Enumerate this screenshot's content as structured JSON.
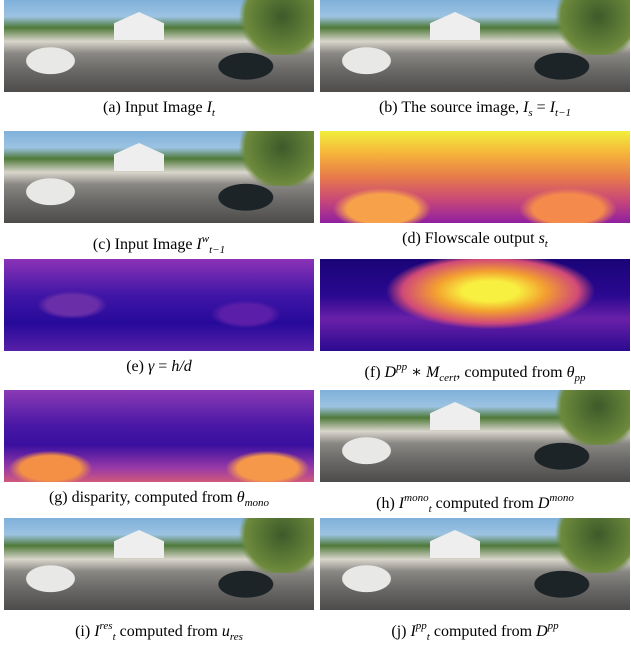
{
  "panels": [
    {
      "caption": [
        {
          "text": "(a) Input Image "
        },
        {
          "text": "I",
          "style": "m"
        },
        {
          "text": "t",
          "style": "sub"
        }
      ]
    },
    {
      "caption": [
        {
          "text": "(b) The source image, "
        },
        {
          "text": "I",
          "style": "m"
        },
        {
          "text": "s",
          "style": "sub"
        },
        {
          "text": " = "
        },
        {
          "text": "I",
          "style": "m"
        },
        {
          "text": "t−1",
          "style": "sub"
        }
      ]
    },
    {
      "caption": [
        {
          "text": "(c) Input Image "
        },
        {
          "text": "I",
          "style": "m"
        },
        {
          "text": "w",
          "style": "sup"
        },
        {
          "text": "t−1",
          "style": "sub"
        }
      ]
    },
    {
      "caption": [
        {
          "text": "(d) Flowscale output "
        },
        {
          "text": "s",
          "style": "m"
        },
        {
          "text": "t",
          "style": "sub"
        }
      ]
    },
    {
      "caption": [
        {
          "text": "(e) "
        },
        {
          "text": "γ",
          "style": "m"
        },
        {
          "text": " = "
        },
        {
          "text": "h/d",
          "style": "m"
        }
      ]
    },
    {
      "caption": [
        {
          "text": "(f) "
        },
        {
          "text": "D",
          "style": "m"
        },
        {
          "text": "pp",
          "style": "sup"
        },
        {
          "text": " ∗ "
        },
        {
          "text": "M",
          "style": "m"
        },
        {
          "text": "cert",
          "style": "sub"
        },
        {
          "text": ", computed from "
        },
        {
          "text": "θ",
          "style": "m"
        },
        {
          "text": "pp",
          "style": "sub"
        }
      ]
    },
    {
      "caption": [
        {
          "text": "(g) disparity, computed from "
        },
        {
          "text": "θ",
          "style": "m"
        },
        {
          "text": "mono",
          "style": "sub"
        }
      ]
    },
    {
      "caption": [
        {
          "text": "(h) "
        },
        {
          "text": "I",
          "style": "m"
        },
        {
          "text": "mono",
          "style": "sup"
        },
        {
          "text": "t",
          "style": "sub"
        },
        {
          "text": " computed from "
        },
        {
          "text": "D",
          "style": "m"
        },
        {
          "text": "mono",
          "style": "sup"
        }
      ]
    },
    {
      "caption": [
        {
          "text": "(i) "
        },
        {
          "text": "I",
          "style": "m"
        },
        {
          "text": "res",
          "style": "sup"
        },
        {
          "text": "t",
          "style": "sub"
        },
        {
          "text": " computed from "
        },
        {
          "text": "u",
          "style": "m"
        },
        {
          "text": "res",
          "style": "sub"
        }
      ]
    },
    {
      "caption": [
        {
          "text": "(j) "
        },
        {
          "text": "I",
          "style": "m"
        },
        {
          "text": "pp",
          "style": "sup"
        },
        {
          "text": "t",
          "style": "sub"
        },
        {
          "text": " computed from "
        },
        {
          "text": "D",
          "style": "m"
        },
        {
          "text": "pp",
          "style": "sup"
        }
      ]
    }
  ]
}
